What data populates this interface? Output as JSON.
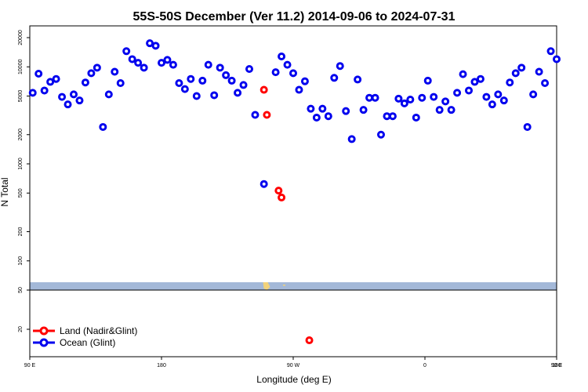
{
  "chart_data": {
    "type": "scatter",
    "title": "55S-50S December (Ver 11.2)   2014-09-06 to 2024-07-31",
    "xlabel": "Longitude (deg E)",
    "ylabel": "N Total",
    "x_range": [
      90,
      450
    ],
    "y_scale": "log",
    "y_range": [
      10,
      25000
    ],
    "x_ticks": [
      {
        "value": 90,
        "label": "90 E"
      },
      {
        "value": 180,
        "label": "180"
      },
      {
        "value": 270,
        "label": "90 W"
      },
      {
        "value": 360,
        "label": "0"
      },
      {
        "value": 450,
        "label": "90 E"
      },
      {
        "value": 540,
        "label": "180"
      }
    ],
    "y_ticks_upper": [
      {
        "value": 50,
        "label": "50"
      },
      {
        "value": 100,
        "label": "100"
      },
      {
        "value": 200,
        "label": "200"
      },
      {
        "value": 500,
        "label": "500"
      },
      {
        "value": 1000,
        "label": "1000"
      },
      {
        "value": 2000,
        "label": "2000"
      },
      {
        "value": 5000,
        "label": "5000"
      },
      {
        "value": 10000,
        "label": "10000"
      },
      {
        "value": 20000,
        "label": "20000"
      }
    ],
    "y_ticks_lower": [
      {
        "value": 20,
        "label": "20"
      }
    ],
    "legend": {
      "placement": "bottom-left",
      "entries": [
        {
          "label": "Land (Nadir&Glint)",
          "color": "#ff0000"
        },
        {
          "label": "Ocean (Glint)",
          "color": "#0000ee"
        }
      ]
    },
    "map_strip_color": "#a3b8d8",
    "map_land_color": "#f2d27a",
    "series": [
      {
        "name": "Ocean (Glint)",
        "color": "#0000ee",
        "points": [
          [
            92,
            5400
          ],
          [
            96,
            8500
          ],
          [
            100,
            5700
          ],
          [
            104,
            7000
          ],
          [
            108,
            7500
          ],
          [
            112,
            4900
          ],
          [
            116,
            4100
          ],
          [
            120,
            5200
          ],
          [
            124,
            4500
          ],
          [
            128,
            6900
          ],
          [
            132,
            8600
          ],
          [
            136,
            9800
          ],
          [
            140,
            2400
          ],
          [
            144,
            5200
          ],
          [
            148,
            8900
          ],
          [
            152,
            6800
          ],
          [
            156,
            14500
          ],
          [
            160,
            12000
          ],
          [
            164,
            11000
          ],
          [
            168,
            9800
          ],
          [
            172,
            17500
          ],
          [
            176,
            16500
          ],
          [
            180,
            11000
          ],
          [
            184,
            11800
          ],
          [
            188,
            10500
          ],
          [
            192,
            6800
          ],
          [
            196,
            5900
          ],
          [
            200,
            7500
          ],
          [
            204,
            5000
          ],
          [
            208,
            7200
          ],
          [
            212,
            10500
          ],
          [
            216,
            5100
          ],
          [
            220,
            9800
          ],
          [
            224,
            8200
          ],
          [
            228,
            7200
          ],
          [
            232,
            5400
          ],
          [
            236,
            6500
          ],
          [
            240,
            9500
          ],
          [
            244,
            3200
          ],
          [
            258,
            8800
          ],
          [
            262,
            12800
          ],
          [
            266,
            10500
          ],
          [
            270,
            8600
          ],
          [
            274,
            5800
          ],
          [
            278,
            7100
          ],
          [
            282,
            3700
          ],
          [
            286,
            3000
          ],
          [
            290,
            3700
          ],
          [
            294,
            3100
          ],
          [
            298,
            7700
          ],
          [
            302,
            10200
          ],
          [
            306,
            3500
          ],
          [
            310,
            1800
          ],
          [
            314,
            7400
          ],
          [
            318,
            3600
          ],
          [
            322,
            4800
          ],
          [
            326,
            4800
          ],
          [
            330,
            2000
          ],
          [
            334,
            3100
          ],
          [
            338,
            3100
          ],
          [
            342,
            4700
          ],
          [
            346,
            4200
          ],
          [
            350,
            4600
          ],
          [
            354,
            3000
          ],
          [
            358,
            4800
          ],
          [
            362,
            7200
          ],
          [
            366,
            4900
          ],
          [
            370,
            3600
          ],
          [
            374,
            4400
          ],
          [
            378,
            3600
          ],
          [
            382,
            5400
          ],
          [
            386,
            8400
          ],
          [
            390,
            5700
          ],
          [
            394,
            7000
          ],
          [
            398,
            7500
          ],
          [
            402,
            4900
          ],
          [
            406,
            4100
          ],
          [
            410,
            5200
          ],
          [
            414,
            4500
          ],
          [
            418,
            6900
          ],
          [
            422,
            8600
          ],
          [
            426,
            9800
          ],
          [
            430,
            2400
          ],
          [
            434,
            5200
          ],
          [
            438,
            8900
          ],
          [
            442,
            6800
          ],
          [
            446,
            14500
          ],
          [
            450,
            12000
          ],
          [
            250,
            620
          ]
        ]
      },
      {
        "name": "Land (Nadir&Glint)",
        "color": "#ff0000",
        "points": [
          [
            250,
            5800
          ],
          [
            252,
            3200
          ],
          [
            260,
            530
          ],
          [
            262,
            450
          ],
          [
            281,
            16
          ]
        ]
      }
    ]
  }
}
